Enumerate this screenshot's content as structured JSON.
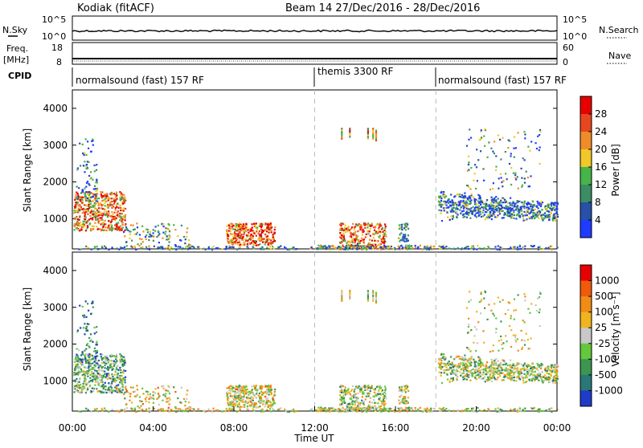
{
  "header": {
    "title": "Kodiak (fitACF)",
    "beam_info": "Beam 14  27/Dec/2016 - 28/Dec/2016"
  },
  "strip": {
    "nsky_label": "N.Sky",
    "nsky_top_tick": "10^5",
    "nsky_bottom_tick": "10^0",
    "nsearch_top_tick": "10^5",
    "nsearch_bottom_tick": "10^0",
    "nsearch_label": "N.Search",
    "freq_label_1": "Freq.",
    "freq_label_2": "[MHz]",
    "freq_top_tick": "18",
    "freq_bottom_tick": "8",
    "nave_top_tick": "60",
    "nave_bottom_tick": "0",
    "nave_label": "Nave",
    "cpid_label": "CPID",
    "cpid_segments": [
      "normalsound (fast) 157 RF",
      "themis 3300 RF",
      "normalsound (fast) 157 RF"
    ]
  },
  "chart_data": [
    {
      "type": "heatmap",
      "name": "power-panel",
      "title": "",
      "ylabel": "Slant Range [km]",
      "xlabel": "",
      "xlim_hours": [
        0,
        24
      ],
      "ylim_km": [
        180,
        4500
      ],
      "y_ticks": [
        "1000",
        "2000",
        "3000",
        "4000"
      ],
      "colorbar_label": "Power [dB]",
      "colorbar_ticks": [
        "4",
        "8",
        "12",
        "16",
        "20",
        "24",
        "28"
      ],
      "colorbar_colors": [
        "#1e3cff",
        "#2850a8",
        "#3c8c64",
        "#46b448",
        "#f0c828",
        "#f08c28",
        "#e8461e",
        "#e60000"
      ],
      "mode_boundaries_hours": [
        12,
        18
      ]
    },
    {
      "type": "heatmap",
      "name": "velocity-panel",
      "title": "",
      "ylabel": "Slant Range [km]",
      "xlabel": "Time UT",
      "xlim_hours": [
        0,
        24
      ],
      "ylim_km": [
        180,
        4500
      ],
      "y_ticks": [
        "1000",
        "2000",
        "3000",
        "4000"
      ],
      "x_ticks": [
        "00:00",
        "04:00",
        "08:00",
        "12:00",
        "16:00",
        "20:00",
        "00:00"
      ],
      "x_tick_hours": [
        0,
        4,
        8,
        12,
        16,
        20,
        24
      ],
      "colorbar_label": "Velocity [m s⁻¹]",
      "colorbar_ticks": [
        "1000",
        "500",
        "100",
        "25",
        "-25",
        "-100",
        "-500",
        "-1000"
      ],
      "colorbar_colors": [
        "#1e3cc8",
        "#287878",
        "#3c9650",
        "#64c83c",
        "#c8c8c8",
        "#f0b41e",
        "#f08c14",
        "#f05a0a",
        "#e60000"
      ],
      "mode_boundaries_hours": [
        12,
        18
      ]
    }
  ]
}
